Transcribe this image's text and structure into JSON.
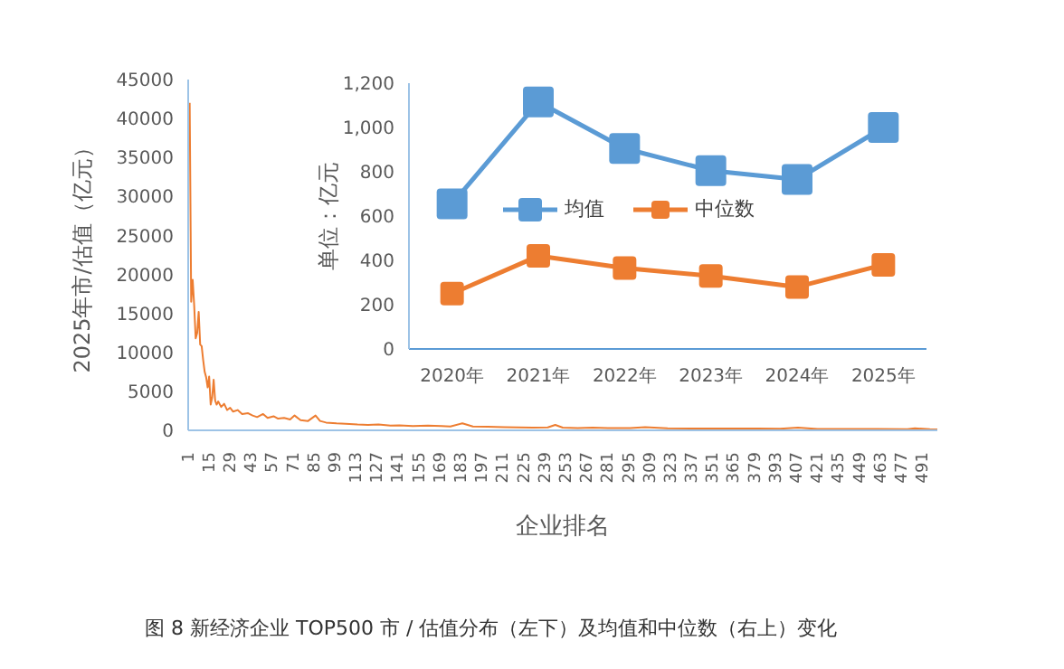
{
  "chart_data": [
    {
      "type": "line",
      "xlabel": "企业排名",
      "ylabel": "2025年市/估值（亿元）",
      "annotations": [
        "图 8 新经济企业 TOP500 市 / 估值分布（左下）及均值和中位数（右上）变化"
      ],
      "x": [
        1,
        2,
        3,
        4,
        5,
        6,
        7,
        8,
        9,
        10,
        11,
        12,
        13,
        14,
        15,
        16,
        17,
        18,
        19,
        20,
        22,
        24,
        26,
        28,
        30,
        33,
        36,
        40,
        43,
        46,
        50,
        53,
        57,
        60,
        64,
        68,
        71,
        75,
        80,
        85,
        88,
        92,
        99,
        105,
        113,
        120,
        127,
        135,
        141,
        150,
        160,
        169,
        175,
        183,
        190,
        200,
        211,
        220,
        230,
        240,
        245,
        250,
        260,
        270,
        280,
        295,
        305,
        320,
        340,
        360,
        380,
        395,
        407,
        420,
        440,
        460,
        480,
        485,
        495,
        500
      ],
      "series": [
        {
          "color": "#ed7d31",
          "values": [
            42000,
            16500,
            19300,
            16000,
            11800,
            12500,
            15200,
            11000,
            10800,
            9000,
            7500,
            6800,
            5500,
            6900,
            3300,
            4200,
            6500,
            3800,
            3300,
            3700,
            3000,
            3400,
            2600,
            2900,
            2400,
            2600,
            2100,
            2200,
            1900,
            1700,
            2100,
            1600,
            1800,
            1500,
            1600,
            1400,
            1900,
            1300,
            1200,
            1900,
            1200,
            1000,
            900,
            850,
            750,
            700,
            750,
            600,
            650,
            550,
            600,
            550,
            500,
            900,
            500,
            450,
            400,
            380,
            350,
            380,
            700,
            350,
            300,
            350,
            300,
            280,
            400,
            260,
            240,
            220,
            220,
            200,
            350,
            180,
            170,
            160,
            150,
            250,
            140,
            130
          ]
        }
      ],
      "xlim": [
        0,
        500
      ],
      "xticks": [
        1,
        15,
        29,
        43,
        57,
        71,
        85,
        99,
        113,
        127,
        141,
        155,
        169,
        183,
        197,
        211,
        225,
        239,
        253,
        267,
        281,
        295,
        309,
        323,
        337,
        351,
        365,
        379,
        393,
        407,
        421,
        435,
        449,
        463,
        477,
        491
      ],
      "ylim": [
        0,
        45000
      ],
      "yticks": [
        0,
        5000,
        10000,
        15000,
        20000,
        25000,
        30000,
        35000,
        40000,
        45000
      ],
      "grid": false,
      "legend": false,
      "marker": "none"
    },
    {
      "type": "line",
      "ylabel": "单位：亿元",
      "categories": [
        "2020年",
        "2021年",
        "2022年",
        "2023年",
        "2024年",
        "2025年"
      ],
      "series": [
        {
          "name": "均值",
          "color": "#5b9bd5",
          "values": [
            655,
            1115,
            905,
            805,
            765,
            1000
          ]
        },
        {
          "name": "中位数",
          "color": "#ed7d31",
          "values": [
            250,
            420,
            365,
            330,
            280,
            380
          ]
        }
      ],
      "ylim": [
        0,
        1200
      ],
      "yticks": [
        0,
        200,
        400,
        600,
        800,
        {
          "value": 1000,
          "label": "1,000"
        },
        {
          "value": 1200,
          "label": "1,200"
        }
      ],
      "grid": false,
      "legend": "left",
      "marker": "square"
    }
  ]
}
